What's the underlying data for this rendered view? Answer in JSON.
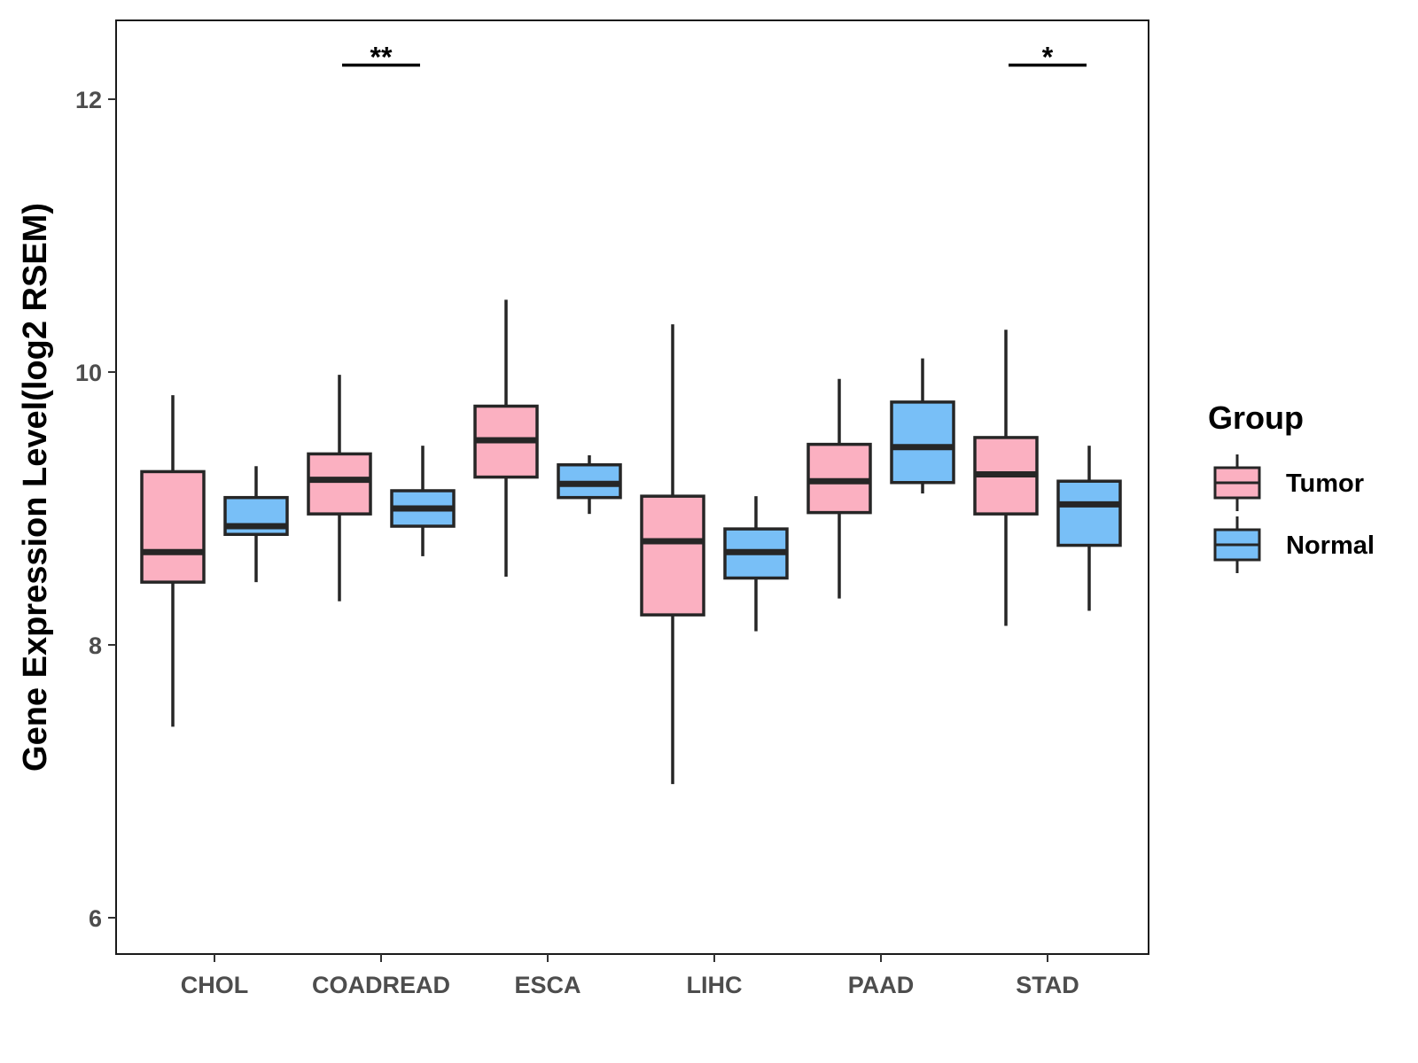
{
  "chart_data": {
    "type": "boxplot",
    "title": "",
    "xlabel": "",
    "ylabel": "Gene Expression Level(log2 RSEM)",
    "ylim": [
      5.75,
      12.6
    ],
    "yticks": [
      6,
      8,
      10,
      12
    ],
    "grid": false,
    "legend_position": "right",
    "legend_title": "Group",
    "colors": {
      "Tumor": "#FBB0C1",
      "Normal": "#78BFF7",
      "outline": "#262626"
    },
    "categories": [
      "CHOL",
      "COADREAD",
      "ESCA",
      "LIHC",
      "PAAD",
      "STAD"
    ],
    "series": [
      {
        "name": "Tumor",
        "boxes": [
          {
            "whisker_low": 7.4,
            "q1": 8.46,
            "median": 8.68,
            "q3": 9.27,
            "whisker_high": 9.83
          },
          {
            "whisker_low": 8.32,
            "q1": 8.96,
            "median": 9.21,
            "q3": 9.4,
            "whisker_high": 9.98
          },
          {
            "whisker_low": 8.5,
            "q1": 9.23,
            "median": 9.5,
            "q3": 9.75,
            "whisker_high": 10.53
          },
          {
            "whisker_low": 6.98,
            "q1": 8.22,
            "median": 8.76,
            "q3": 9.09,
            "whisker_high": 10.35
          },
          {
            "whisker_low": 8.34,
            "q1": 8.97,
            "median": 9.2,
            "q3": 9.47,
            "whisker_high": 9.95
          },
          {
            "whisker_low": 8.14,
            "q1": 8.96,
            "median": 9.25,
            "q3": 9.52,
            "whisker_high": 10.31
          }
        ]
      },
      {
        "name": "Normal",
        "boxes": [
          {
            "whisker_low": 8.46,
            "q1": 8.81,
            "median": 8.87,
            "q3": 9.08,
            "whisker_high": 9.31
          },
          {
            "whisker_low": 8.65,
            "q1": 8.87,
            "median": 9.0,
            "q3": 9.13,
            "whisker_high": 9.46
          },
          {
            "whisker_low": 8.96,
            "q1": 9.08,
            "median": 9.18,
            "q3": 9.32,
            "whisker_high": 9.39
          },
          {
            "whisker_low": 8.1,
            "q1": 8.49,
            "median": 8.68,
            "q3": 8.85,
            "whisker_high": 9.09
          },
          {
            "whisker_low": 9.11,
            "q1": 9.19,
            "median": 9.45,
            "q3": 9.78,
            "whisker_high": 10.1
          },
          {
            "whisker_low": 8.25,
            "q1": 8.73,
            "median": 9.03,
            "q3": 9.2,
            "whisker_high": 9.46
          }
        ]
      }
    ],
    "annotations": [
      {
        "category": "COADREAD",
        "label": "**",
        "y": 12.25
      },
      {
        "category": "STAD",
        "label": "*",
        "y": 12.25
      }
    ]
  }
}
